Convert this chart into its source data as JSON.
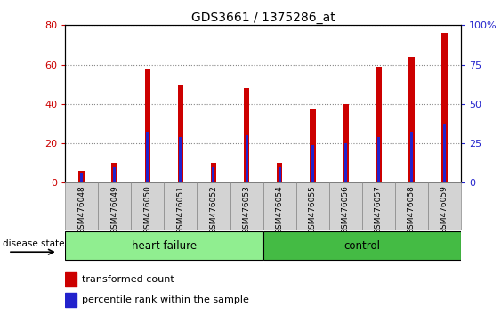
{
  "title": "GDS3661 / 1375286_at",
  "samples": [
    "GSM476048",
    "GSM476049",
    "GSM476050",
    "GSM476051",
    "GSM476052",
    "GSM476053",
    "GSM476054",
    "GSM476055",
    "GSM476056",
    "GSM476057",
    "GSM476058",
    "GSM476059"
  ],
  "red_values": [
    6,
    10,
    58,
    50,
    10,
    48,
    10,
    37,
    40,
    59,
    64,
    76
  ],
  "blue_values": [
    5,
    8,
    26,
    23,
    8,
    24,
    8,
    19,
    20,
    23,
    26,
    30
  ],
  "heart_failure_count": 6,
  "control_count": 6,
  "group_label_hf": "heart failure",
  "group_label_ctrl": "control",
  "disease_state_label": "disease state",
  "left_ylim": [
    0,
    80
  ],
  "right_ylim": [
    0,
    100
  ],
  "left_yticks": [
    0,
    20,
    40,
    60,
    80
  ],
  "right_yticks": [
    0,
    25,
    50,
    75,
    100
  ],
  "right_yticklabels": [
    "0",
    "25",
    "50",
    "75",
    "100%"
  ],
  "bar_color": "#CC0000",
  "blue_color": "#2222CC",
  "cell_bg_color": "#D3D3D3",
  "plot_bg_color": "#FFFFFF",
  "hf_bg": "#90EE90",
  "ctrl_bg": "#44BB44",
  "legend_red_label": "transformed count",
  "legend_blue_label": "percentile rank within the sample",
  "bar_width": 0.18,
  "blue_bar_width": 0.08
}
